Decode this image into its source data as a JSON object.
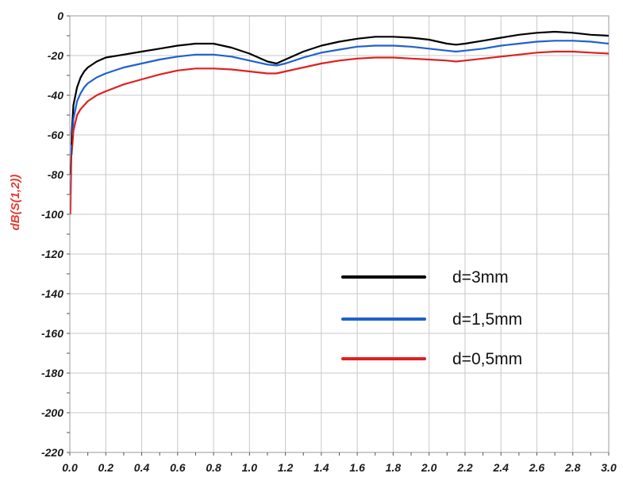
{
  "chart_data": {
    "type": "line",
    "title": "",
    "xlabel": "",
    "ylabel": "dB(S(1,2))",
    "xlim": [
      0.0,
      3.0
    ],
    "ylim": [
      -220,
      0
    ],
    "x_ticks": [
      "0.0",
      "0.2",
      "0.4",
      "0.6",
      "0.8",
      "1.0",
      "1.2",
      "1.4",
      "1.6",
      "1.8",
      "2.0",
      "2.2",
      "2.4",
      "2.6",
      "2.8",
      "3.0"
    ],
    "y_ticks": [
      "0",
      "-20",
      "-40",
      "-60",
      "-80",
      "-100",
      "-120",
      "-140",
      "-160",
      "-180",
      "-200",
      "-220"
    ],
    "grid": true,
    "legend_position": "center-right",
    "series": [
      {
        "name": "d=3mm",
        "color": "#000000",
        "points": [
          [
            0.01,
            -60
          ],
          [
            0.02,
            -45
          ],
          [
            0.04,
            -36
          ],
          [
            0.06,
            -31
          ],
          [
            0.08,
            -28
          ],
          [
            0.1,
            -26
          ],
          [
            0.15,
            -23
          ],
          [
            0.2,
            -21
          ],
          [
            0.3,
            -19.5
          ],
          [
            0.4,
            -18
          ],
          [
            0.5,
            -16.5
          ],
          [
            0.6,
            -15
          ],
          [
            0.7,
            -14
          ],
          [
            0.8,
            -14
          ],
          [
            0.9,
            -16
          ],
          [
            1.0,
            -19
          ],
          [
            1.1,
            -23
          ],
          [
            1.15,
            -24
          ],
          [
            1.2,
            -22
          ],
          [
            1.3,
            -18
          ],
          [
            1.4,
            -15
          ],
          [
            1.5,
            -13
          ],
          [
            1.6,
            -11.5
          ],
          [
            1.7,
            -10.5
          ],
          [
            1.8,
            -10.5
          ],
          [
            1.9,
            -11
          ],
          [
            2.0,
            -12
          ],
          [
            2.1,
            -14
          ],
          [
            2.15,
            -14.5
          ],
          [
            2.2,
            -14
          ],
          [
            2.3,
            -12.5
          ],
          [
            2.4,
            -11
          ],
          [
            2.5,
            -9.5
          ],
          [
            2.6,
            -8.5
          ],
          [
            2.7,
            -8
          ],
          [
            2.8,
            -8.5
          ],
          [
            2.9,
            -9.5
          ],
          [
            3.0,
            -10
          ]
        ]
      },
      {
        "name": "d=1,5mm",
        "color": "#2060d0",
        "points": [
          [
            0.01,
            -65
          ],
          [
            0.02,
            -52
          ],
          [
            0.04,
            -43
          ],
          [
            0.06,
            -39
          ],
          [
            0.08,
            -36
          ],
          [
            0.1,
            -34
          ],
          [
            0.15,
            -31
          ],
          [
            0.2,
            -29
          ],
          [
            0.3,
            -26
          ],
          [
            0.4,
            -24
          ],
          [
            0.5,
            -22
          ],
          [
            0.6,
            -20.5
          ],
          [
            0.7,
            -19.5
          ],
          [
            0.8,
            -19.5
          ],
          [
            0.9,
            -20.5
          ],
          [
            1.0,
            -22.5
          ],
          [
            1.1,
            -24.5
          ],
          [
            1.15,
            -25
          ],
          [
            1.2,
            -24
          ],
          [
            1.3,
            -21
          ],
          [
            1.4,
            -18.5
          ],
          [
            1.5,
            -17
          ],
          [
            1.6,
            -15.5
          ],
          [
            1.7,
            -15
          ],
          [
            1.8,
            -15
          ],
          [
            1.9,
            -15.5
          ],
          [
            2.0,
            -16.5
          ],
          [
            2.1,
            -17.5
          ],
          [
            2.15,
            -18
          ],
          [
            2.2,
            -17.5
          ],
          [
            2.3,
            -16.5
          ],
          [
            2.4,
            -15
          ],
          [
            2.5,
            -14
          ],
          [
            2.6,
            -13
          ],
          [
            2.7,
            -12.5
          ],
          [
            2.8,
            -12.5
          ],
          [
            2.9,
            -13
          ],
          [
            3.0,
            -14
          ]
        ]
      },
      {
        "name": "d=0,5mm",
        "color": "#e02020",
        "points": [
          [
            0.01,
            -70
          ],
          [
            0.02,
            -58
          ],
          [
            0.04,
            -50
          ],
          [
            0.06,
            -47
          ],
          [
            0.08,
            -45
          ],
          [
            0.1,
            -43
          ],
          [
            0.15,
            -40
          ],
          [
            0.2,
            -38
          ],
          [
            0.3,
            -34.5
          ],
          [
            0.4,
            -32
          ],
          [
            0.5,
            -29.5
          ],
          [
            0.6,
            -27.5
          ],
          [
            0.7,
            -26.5
          ],
          [
            0.8,
            -26.5
          ],
          [
            0.9,
            -27
          ],
          [
            1.0,
            -28
          ],
          [
            1.1,
            -29
          ],
          [
            1.15,
            -29
          ],
          [
            1.2,
            -28
          ],
          [
            1.3,
            -26
          ],
          [
            1.4,
            -24
          ],
          [
            1.5,
            -22.5
          ],
          [
            1.6,
            -21.5
          ],
          [
            1.7,
            -21
          ],
          [
            1.8,
            -21
          ],
          [
            1.9,
            -21.5
          ],
          [
            2.0,
            -22
          ],
          [
            2.1,
            -22.5
          ],
          [
            2.15,
            -23
          ],
          [
            2.2,
            -22.5
          ],
          [
            2.3,
            -21.5
          ],
          [
            2.4,
            -20.5
          ],
          [
            2.5,
            -19.5
          ],
          [
            2.6,
            -18.5
          ],
          [
            2.7,
            -18
          ],
          [
            2.8,
            -18
          ],
          [
            2.9,
            -18.5
          ],
          [
            3.0,
            -19
          ]
        ]
      }
    ]
  }
}
